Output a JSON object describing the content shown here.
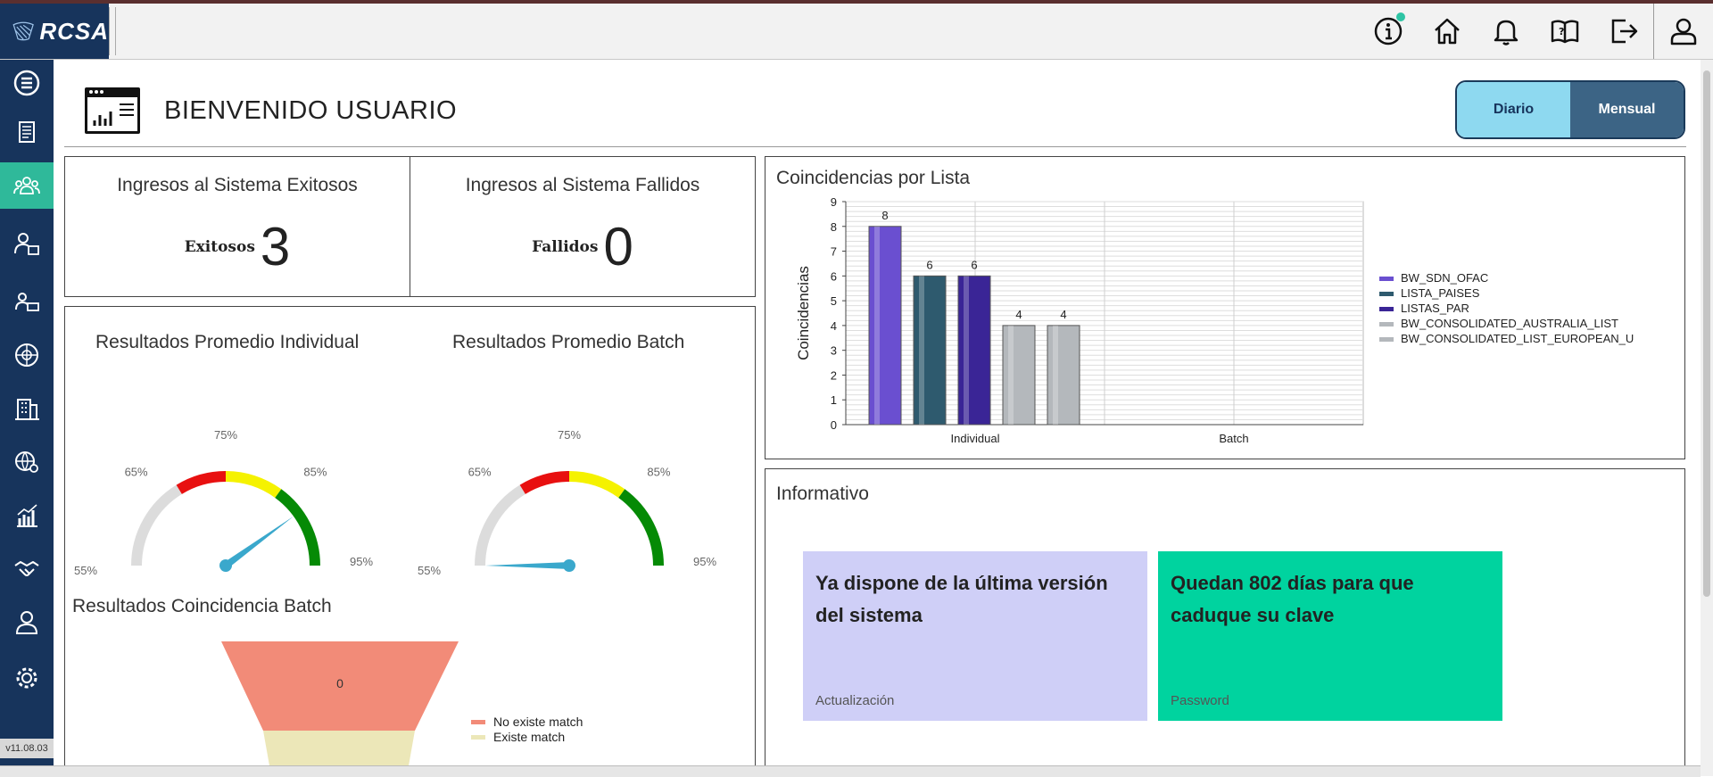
{
  "app": {
    "brand": "RCSA",
    "version": "v11.08.03"
  },
  "header": {
    "icons": [
      "info-icon",
      "home-icon",
      "bell-icon",
      "help-book-icon",
      "logout-icon",
      "user-icon"
    ]
  },
  "sidebar": {
    "items": [
      "menu-icon",
      "clipboard-icon",
      "users-group-icon",
      "user-admin-icon",
      "user-card-icon",
      "world-network-icon",
      "building-icon",
      "globe-settings-icon",
      "report-chart-icon",
      "handshake-icon",
      "person-icon",
      "gear-icon"
    ],
    "active": "users-group-icon"
  },
  "page": {
    "title": "BIENVENIDO USUARIO"
  },
  "toggle": {
    "diario": "Diario",
    "mensual": "Mensual"
  },
  "stats": {
    "success": {
      "title": "Ingresos al Sistema Exitosos",
      "label": "Exitosos",
      "value": "3"
    },
    "failed": {
      "title": "Ingresos al Sistema Fallidos",
      "label": "Fallidos",
      "value": "0"
    }
  },
  "gauges": {
    "individual": {
      "title": "Resultados Promedio Individual",
      "value_percent": 87
    },
    "batch": {
      "title": "Resultados Promedio Batch",
      "value_percent": 55
    },
    "ticks": [
      "55%",
      "65%",
      "75%",
      "85%",
      "95%"
    ],
    "colors": {
      "neutral": "#dcdcdc",
      "red": "#e81010",
      "yellow": "#f5f200",
      "green": "#058a05",
      "needle": "#3aa8cc"
    }
  },
  "funnel": {
    "title": "Resultados Coincidencia Batch",
    "value_label": "0",
    "legend": [
      {
        "name": "No existe match",
        "color": "#f28b78"
      },
      {
        "name": "Existe match",
        "color": "#ece7b8"
      }
    ]
  },
  "chart_data": {
    "type": "bar",
    "title": "Coincidencias por Lista",
    "xlabel": "",
    "ylabel": "Coincidencias",
    "categories": [
      "Individual",
      "Batch"
    ],
    "ylim": [
      0,
      9
    ],
    "yticks": [
      "0",
      "1",
      "2",
      "3",
      "4",
      "5",
      "6",
      "7",
      "8",
      "9"
    ],
    "grid": true,
    "legend_position": "right",
    "series": [
      {
        "name": "BW_SDN_OFAC",
        "values": [
          8,
          0
        ],
        "color": "#6a4fd0"
      },
      {
        "name": "LISTA_PAISES",
        "values": [
          6,
          0
        ],
        "color": "#2e5a6e"
      },
      {
        "name": "LISTAS_PAR",
        "values": [
          6,
          0
        ],
        "color": "#3a2596"
      },
      {
        "name": "BW_CONSOLIDATED_AUSTRALIA_LIST",
        "values": [
          4,
          0
        ],
        "color": "#b4b8bc"
      },
      {
        "name": "BW_CONSOLIDATED_LIST_EUROPEAN_U",
        "values": [
          4,
          0
        ],
        "color": "#b4b8bc"
      }
    ],
    "data_labels": [
      "8",
      "6",
      "6",
      "4",
      "4"
    ]
  },
  "informativo": {
    "title": "Informativo",
    "cards": [
      {
        "text": "Ya dispone de la última versión del sistema",
        "foot": "Actualización",
        "color": "#cfcff7"
      },
      {
        "text": "Quedan 802 días para que caduque su clave",
        "foot": "Password",
        "color": "#00d39f"
      }
    ]
  }
}
